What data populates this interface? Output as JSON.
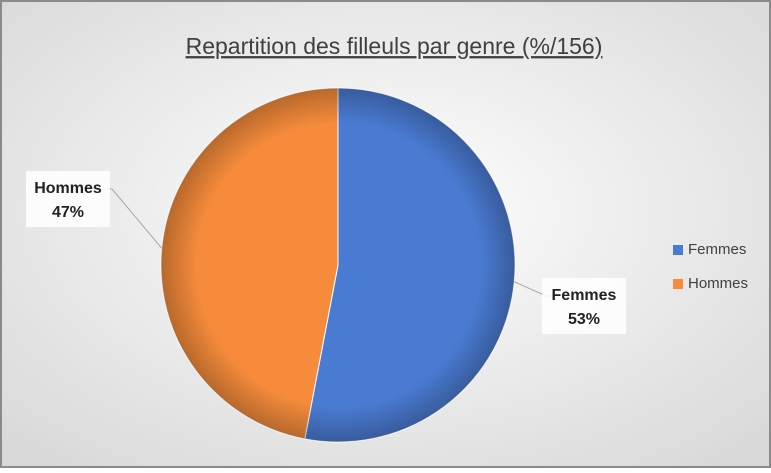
{
  "chart_data": {
    "type": "pie",
    "title": "Repartition des filleuls par genre (%/156)",
    "categories": [
      "Femmes",
      "Hommes"
    ],
    "values": [
      53,
      47
    ],
    "value_labels": [
      "53%",
      "47%"
    ],
    "colors": [
      "#4a7bd3",
      "#f58b3b"
    ],
    "legend": "right"
  }
}
